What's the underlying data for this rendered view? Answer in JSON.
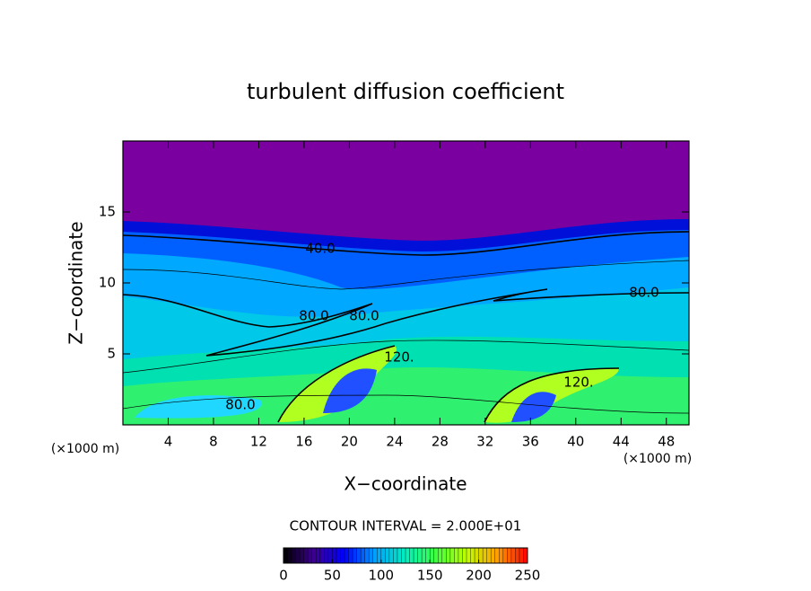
{
  "chart_data": {
    "type": "contour",
    "title": "turbulent diffusion coefficient",
    "x_label": "X−coordinate",
    "y_label": "Z−coordinate",
    "x_unit_left": "(×1000 m)",
    "x_unit_right": "(×1000 m)",
    "xlim": [
      0,
      50
    ],
    "xticks": [
      4,
      8,
      12,
      16,
      20,
      24,
      28,
      32,
      36,
      40,
      44,
      48
    ],
    "ylim": [
      0,
      20
    ],
    "yticks": [
      5,
      10,
      15
    ],
    "contour_labels": [
      "40.0",
      "80.0",
      "80.0",
      "80.0",
      "120.",
      "120.",
      "80.0"
    ],
    "contour_interval": "CONTOUR INTERVAL = 2.000E+01",
    "colorbar": {
      "lim": [
        0,
        250
      ],
      "ticks": [
        0,
        50,
        100,
        150,
        200,
        250
      ],
      "colors": [
        "#000000",
        "#3c0090",
        "#0000ff",
        "#00a0ff",
        "#00f0c0",
        "#40ff40",
        "#c0ff00",
        "#ffa000",
        "#ff0000"
      ]
    }
  }
}
